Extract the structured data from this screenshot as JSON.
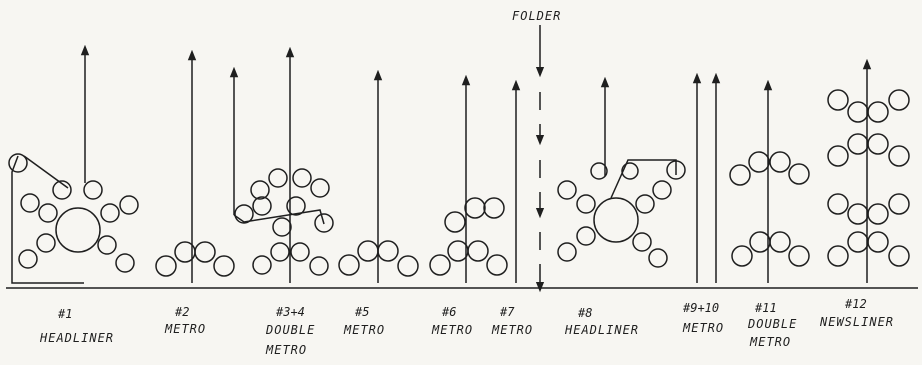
{
  "folder_label": "FOLDER",
  "units": [
    {
      "number": "#1",
      "type": [
        "HEADLINER"
      ]
    },
    {
      "number": "#2",
      "type": [
        "METRO"
      ]
    },
    {
      "number": "#3+4",
      "type": [
        "DOUBLE",
        "METRO"
      ]
    },
    {
      "number": "#5",
      "type": [
        "METRO"
      ]
    },
    {
      "number": "#6",
      "type": [
        "METRO"
      ]
    },
    {
      "number": "#7",
      "type": [
        "METRO"
      ]
    },
    {
      "number": "#8",
      "type": [
        "HEADLINER"
      ]
    },
    {
      "number": "#9+10",
      "type": [
        "METRO"
      ]
    },
    {
      "number": "#11",
      "type": [
        "DOUBLE",
        "METRO"
      ]
    },
    {
      "number": "#12",
      "type": [
        "NEWSLINER"
      ]
    }
  ]
}
